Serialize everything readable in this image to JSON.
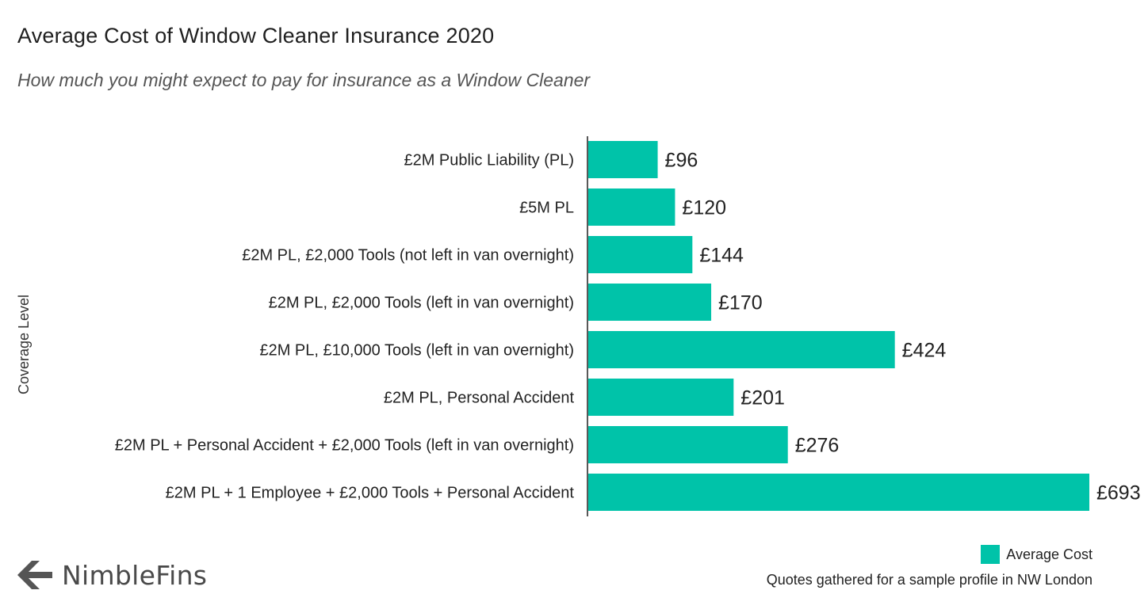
{
  "header": {
    "title": "Average Cost of Window Cleaner Insurance 2020",
    "subtitle": "How much you might expect to pay for insurance as a Window Cleaner"
  },
  "chart_data": {
    "type": "bar",
    "orientation": "horizontal",
    "ylabel": "Coverage Level",
    "categories": [
      "£2M Public Liability (PL)",
      "£5M PL",
      "£2M PL, £2,000 Tools (not left in van overnight)",
      "£2M PL, £2,000 Tools (left in van overnight)",
      "£2M PL, £10,000 Tools (left in van overnight)",
      "£2M PL, Personal Accident",
      "£2M PL + Personal Accident + £2,000 Tools (left in van overnight)",
      "£2M PL + 1 Employee + £2,000 Tools + Personal Accident"
    ],
    "series": [
      {
        "name": "Average Cost",
        "values": [
          96,
          120,
          144,
          170,
          424,
          201,
          276,
          693
        ],
        "value_labels": [
          "£96",
          "£120",
          "£144",
          "£170",
          "£424",
          "£201",
          "£276",
          "£693"
        ],
        "color": "#00c3a9"
      }
    ],
    "xlim": [
      0,
      693
    ],
    "grid": false,
    "legend": "bottom-right"
  },
  "legend": {
    "label": "Average Cost",
    "color": "#00c3a9"
  },
  "footer": {
    "source": "Quotes gathered for a sample profile in NW London",
    "logo_text": "NimbleFins"
  },
  "colors": {
    "bar": "#00c3a9",
    "axis": "#222222",
    "logo_icon": "#555555"
  }
}
